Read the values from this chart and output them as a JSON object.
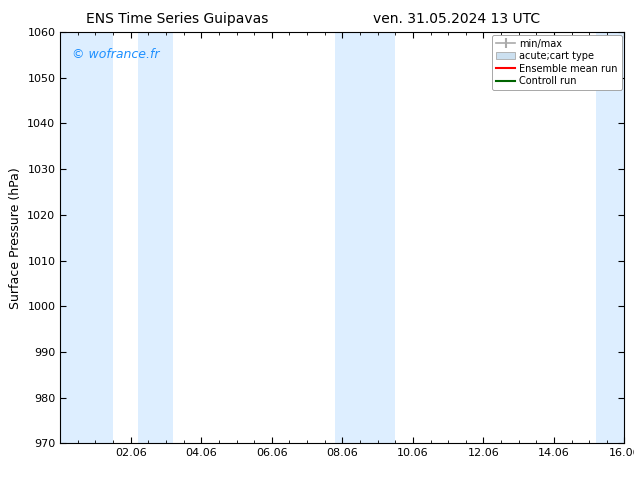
{
  "title_left": "ENS Time Series Guipavas",
  "title_right": "ven. 31.05.2024 13 UTC",
  "ylabel": "Surface Pressure (hPa)",
  "ylim": [
    970,
    1060
  ],
  "yticks": [
    970,
    980,
    990,
    1000,
    1010,
    1020,
    1030,
    1040,
    1050,
    1060
  ],
  "xlim_start": 0,
  "xlim_end": 16,
  "xtick_labels": [
    "02.06",
    "04.06",
    "06.06",
    "08.06",
    "10.06",
    "12.06",
    "14.06",
    "16.06"
  ],
  "xtick_positions": [
    2,
    4,
    6,
    8,
    10,
    12,
    14,
    16
  ],
  "shaded_bands": [
    {
      "x_start": 0.0,
      "x_end": 1.5,
      "color": "#ddeeff"
    },
    {
      "x_start": 2.2,
      "x_end": 3.2,
      "color": "#ddeeff"
    },
    {
      "x_start": 7.8,
      "x_end": 9.5,
      "color": "#ddeeff"
    },
    {
      "x_start": 15.2,
      "x_end": 16.0,
      "color": "#ddeeff"
    }
  ],
  "watermark_text": "© wofrance.fr",
  "watermark_color": "#1e90ff",
  "legend_labels": [
    "min/max",
    "acute;cart type",
    "Ensemble mean run",
    "Controll run"
  ],
  "background_color": "#ffffff",
  "plot_bg_color": "#ffffff",
  "title_fontsize": 10,
  "label_fontsize": 9,
  "tick_fontsize": 8
}
